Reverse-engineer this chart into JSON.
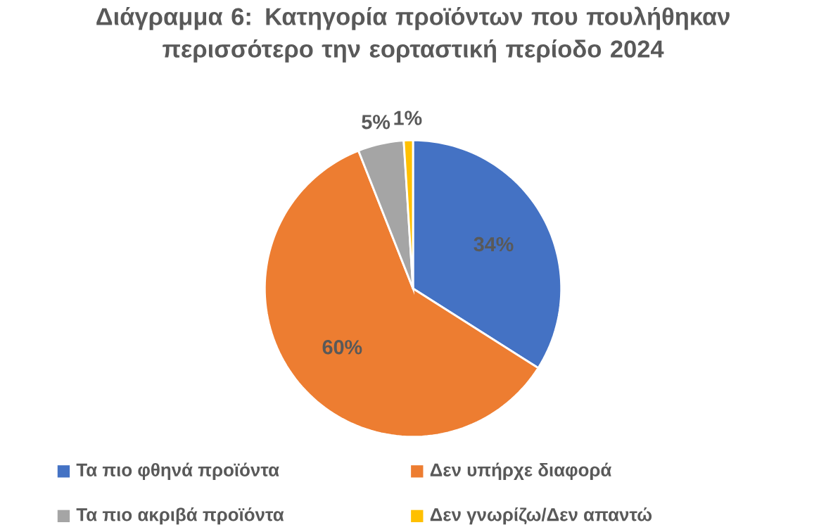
{
  "chart_data": {
    "type": "pie",
    "title": "Διάγραμμα 6: Κατηγορία προϊόντων που πουλήθηκαν περισσότερο την εορταστική περίοδο 2024",
    "categories": [
      "Τα πιο φθηνά προϊόντα",
      "Δεν υπήρχε διαφορά",
      "Τα πιο ακριβά προϊόντα",
      "Δεν γνωρίζω/Δεν απαντώ"
    ],
    "values": [
      34,
      60,
      5,
      1
    ],
    "colors": [
      "#4472c4",
      "#ed7d31",
      "#a5a5a5",
      "#ffc000"
    ],
    "value_labels": [
      "34%",
      "60%",
      "5%",
      "1%"
    ],
    "legend": "bottom"
  }
}
